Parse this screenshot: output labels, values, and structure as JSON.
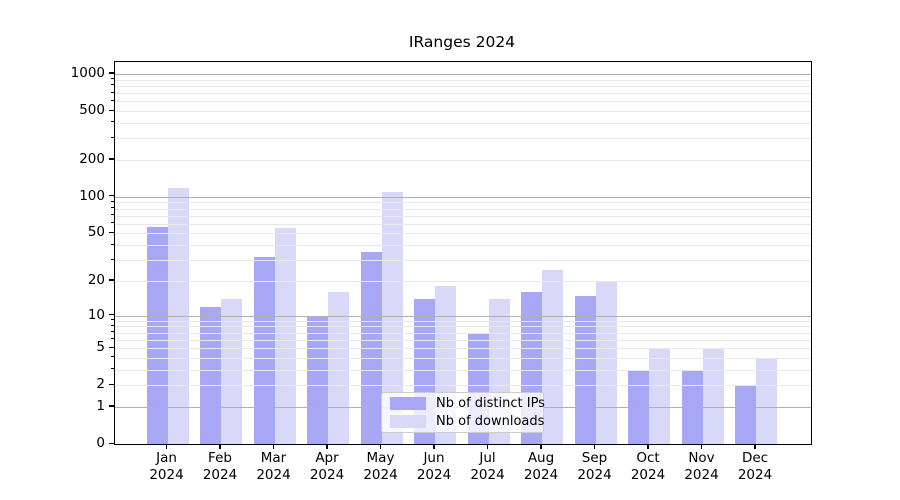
{
  "title": "IRanges 2024",
  "chart_data": {
    "type": "bar",
    "title": "IRanges 2024",
    "categories": [
      "Jan",
      "Feb",
      "Mar",
      "Apr",
      "May",
      "Jun",
      "Jul",
      "Aug",
      "Sep",
      "Oct",
      "Nov",
      "Dec"
    ],
    "category_year": "2024",
    "series": [
      {
        "name": "Nb of distinct IPs",
        "color": "#a7a7f5",
        "values": [
          57,
          12,
          32,
          10,
          35,
          14,
          7,
          16,
          15,
          3,
          3,
          2
        ]
      },
      {
        "name": "Nb of downloads",
        "color": "#d8d8f8",
        "values": [
          119,
          14,
          55,
          16,
          110,
          18,
          14,
          25,
          20,
          5,
          5,
          4
        ]
      }
    ],
    "xlabel": "",
    "ylabel": "",
    "y_scale": "log1p",
    "ylim": [
      0,
      1250
    ],
    "y_ticks": [
      0,
      1,
      2,
      5,
      10,
      20,
      50,
      100,
      200,
      500,
      1000
    ],
    "y_decade_gridlines": [
      1,
      10,
      100,
      1000
    ],
    "y_minor_gridlines": [
      3,
      4,
      6,
      7,
      8,
      9,
      30,
      40,
      60,
      70,
      80,
      90,
      300,
      400,
      600,
      700,
      800,
      900
    ],
    "grid": "on",
    "grid_over_bars": true,
    "legend_position": "bottom-center",
    "colors": {
      "major_grid": "#b0b0b0",
      "minor_grid": "#e8e8e8",
      "axis": "#000000",
      "background": "#ffffff"
    }
  }
}
